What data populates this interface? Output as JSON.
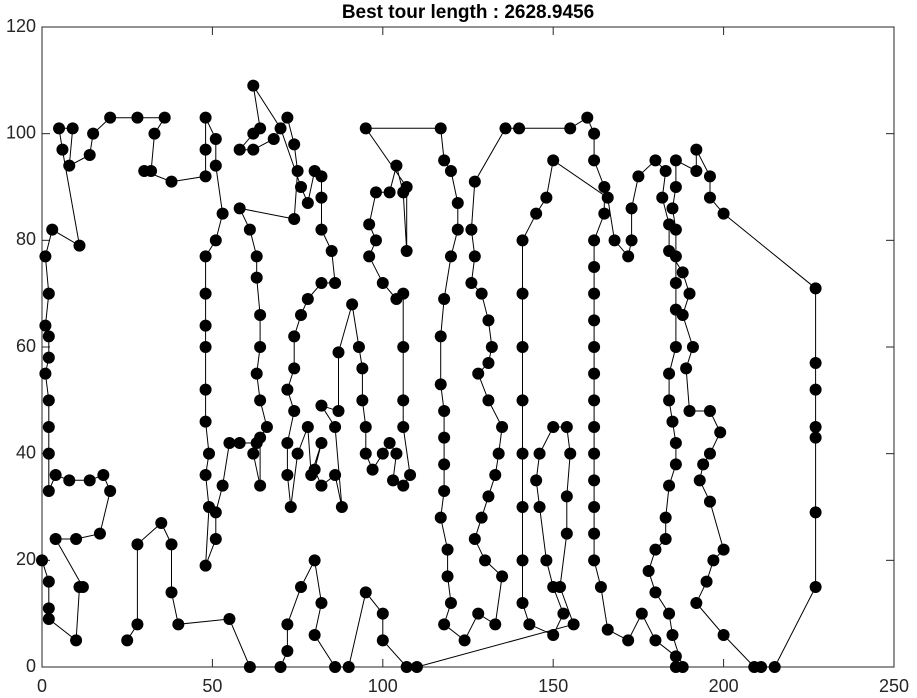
{
  "chart_data": {
    "type": "line",
    "title": "Best tour length : 2628.9456",
    "color": "#000000",
    "marker": "circle",
    "x": [
      0,
      2,
      2,
      2,
      10,
      11,
      12,
      4,
      10,
      17,
      20,
      18,
      14,
      8,
      4,
      2,
      2,
      2,
      2,
      1,
      2,
      2,
      1,
      2,
      1,
      3,
      11,
      6,
      5,
      9,
      8,
      14,
      15,
      20,
      28,
      36,
      33,
      32,
      30,
      38,
      48,
      48,
      48,
      51,
      51,
      53,
      51,
      48,
      48,
      48,
      48,
      48,
      48,
      49,
      48,
      49,
      48,
      51,
      51,
      53,
      55,
      58,
      63,
      62,
      64,
      64,
      66,
      64,
      63,
      64,
      64,
      63,
      63,
      61,
      58,
      74,
      75,
      74,
      72,
      68,
      62,
      58,
      62,
      64,
      62,
      70,
      76,
      78,
      80,
      82,
      82,
      82,
      85,
      86,
      82,
      78,
      76,
      74,
      74,
      72,
      74,
      72,
      72,
      73,
      75,
      78,
      79,
      82,
      80,
      82,
      86,
      88,
      86,
      82,
      87,
      87,
      91,
      93,
      94,
      94,
      95,
      95,
      97,
      100,
      102,
      104,
      103,
      106,
      108,
      106,
      106,
      106,
      106,
      104,
      100,
      96,
      98,
      96,
      98,
      102,
      104,
      106,
      107,
      107,
      95,
      117,
      118,
      120,
      122,
      122,
      120,
      118,
      117,
      117,
      118,
      118,
      118,
      118,
      117,
      119,
      119,
      120,
      118,
      124,
      128,
      133,
      135,
      130,
      127,
      129,
      131,
      133,
      134,
      135,
      131,
      128,
      131,
      132,
      131,
      129,
      126,
      127,
      126,
      127,
      136,
      140,
      155,
      160,
      162,
      162,
      165,
      165,
      162,
      162,
      162,
      162,
      162,
      162,
      162,
      162,
      162,
      162,
      162,
      162,
      162,
      164,
      166,
      172,
      176,
      180,
      186,
      186,
      188,
      185,
      184,
      180,
      178,
      180,
      183,
      183,
      184,
      186,
      186,
      185,
      184,
      184,
      186,
      186,
      186,
      186,
      186,
      185,
      186,
      186,
      192,
      192,
      196,
      196,
      200,
      227,
      227,
      227,
      227,
      227,
      227,
      227,
      215,
      211,
      209,
      200,
      192,
      195,
      197,
      200,
      196,
      193,
      194,
      196,
      199,
      196,
      190,
      189,
      191,
      188,
      190,
      188,
      184,
      184,
      182,
      183,
      180,
      175,
      173,
      173,
      172,
      168,
      166,
      150,
      148,
      145,
      141,
      141,
      141,
      141,
      141,
      141,
      141,
      141,
      143,
      150,
      153,
      150,
      148,
      146,
      145,
      146,
      150,
      154,
      155,
      154,
      154,
      152,
      156,
      110,
      107,
      100,
      100,
      95,
      90,
      86,
      80,
      82,
      80,
      76,
      72,
      72,
      70,
      61,
      55,
      40,
      38,
      38,
      35,
      28,
      28,
      25
    ],
    "values": [
      20,
      16,
      11,
      9,
      5,
      15,
      15,
      24,
      24,
      25,
      33,
      36,
      35,
      35,
      36,
      33,
      40,
      45,
      50,
      55,
      58,
      62,
      64,
      70,
      77,
      82,
      79,
      97,
      101,
      101,
      94,
      96,
      100,
      103,
      103,
      103,
      100,
      93,
      93,
      91,
      92,
      97,
      103,
      99,
      94,
      85,
      80,
      77,
      70,
      64,
      60,
      52,
      46,
      40,
      36,
      30,
      19,
      24,
      29,
      34,
      42,
      42,
      42,
      40,
      34,
      43,
      45,
      50,
      55,
      60,
      66,
      73,
      77,
      82,
      86,
      84,
      93,
      98,
      103,
      99,
      97,
      97,
      100,
      101,
      109,
      101,
      90,
      87,
      93,
      92,
      88,
      82,
      78,
      72,
      72,
      69,
      66,
      62,
      56,
      52,
      48,
      42,
      36,
      30,
      40,
      45,
      36,
      42,
      37,
      34,
      36,
      30,
      45,
      49,
      48,
      59,
      68,
      60,
      56,
      50,
      45,
      40,
      37,
      40,
      42,
      40,
      35,
      34,
      36,
      45,
      50,
      60,
      70,
      69,
      72,
      77,
      80,
      83,
      89,
      89,
      94,
      89,
      78,
      90,
      101,
      101,
      95,
      93,
      87,
      82,
      77,
      69,
      62,
      53,
      48,
      43,
      38,
      33,
      28,
      22,
      17,
      12,
      8,
      5,
      10,
      8,
      17,
      20,
      24,
      28,
      32,
      36,
      40,
      45,
      50,
      55,
      57,
      60,
      65,
      70,
      72,
      77,
      82,
      91,
      101,
      101,
      101,
      103,
      100,
      95,
      90,
      85,
      80,
      75,
      70,
      65,
      60,
      55,
      50,
      45,
      40,
      35,
      30,
      25,
      20,
      15,
      7,
      5,
      10,
      5,
      2,
      0,
      0,
      6,
      10,
      14,
      18,
      22,
      24,
      28,
      34,
      38,
      42,
      46,
      50,
      55,
      60,
      67,
      72,
      77,
      82,
      86,
      90,
      95,
      93,
      97,
      92,
      88,
      85,
      71,
      57,
      52,
      45,
      43,
      29,
      15,
      0,
      0,
      0,
      6,
      12,
      16,
      20,
      22,
      31,
      35,
      38,
      40,
      44,
      48,
      48,
      56,
      60,
      66,
      70,
      74,
      78,
      83,
      88,
      93,
      95,
      92,
      86,
      80,
      77,
      80,
      88,
      95,
      88,
      85,
      80,
      70,
      60,
      50,
      40,
      30,
      20,
      12,
      8,
      6,
      10,
      15,
      20,
      30,
      35,
      40,
      45,
      45,
      40,
      32,
      25,
      15,
      8,
      0,
      0,
      5,
      10,
      14,
      0,
      0,
      6,
      12,
      20,
      15,
      8,
      3,
      0,
      0,
      9,
      8,
      14,
      23,
      27,
      23,
      8,
      5
    ],
    "xlim": [
      0,
      250
    ],
    "xticks": [
      0,
      50,
      100,
      150,
      200,
      250
    ],
    "ylim": [
      0,
      120
    ],
    "yticks": [
      0,
      20,
      40,
      60,
      80,
      100,
      120
    ]
  }
}
